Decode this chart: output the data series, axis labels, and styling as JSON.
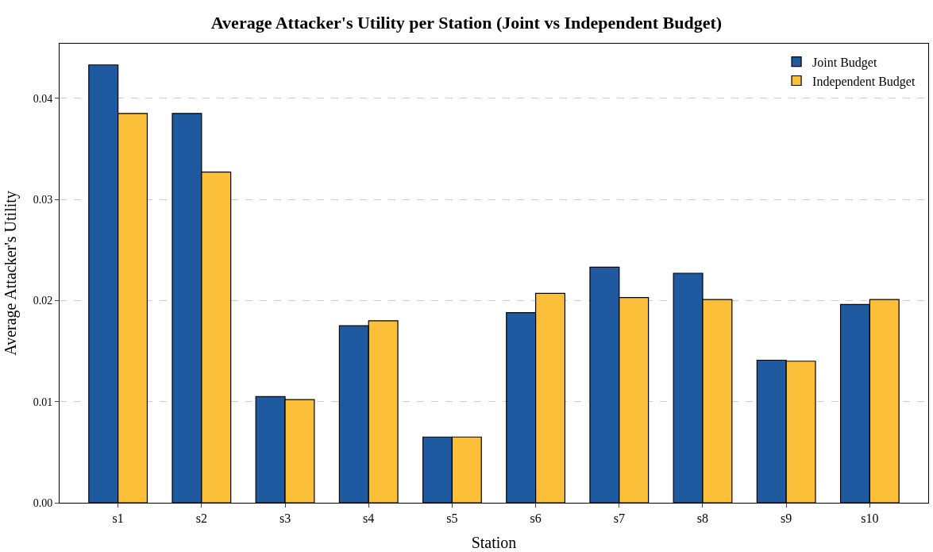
{
  "chart_data": {
    "type": "bar",
    "title": "Average Attacker's Utility per Station (Joint vs Independent Budget)",
    "xlabel": "Station",
    "ylabel": "Average Attacker's Utility",
    "categories": [
      "s1",
      "s2",
      "s3",
      "s4",
      "s5",
      "s6",
      "s7",
      "s8",
      "s9",
      "s10"
    ],
    "series": [
      {
        "name": "Joint Budget",
        "color": "#1f5aa0",
        "values": [
          0.0433,
          0.0385,
          0.0105,
          0.0175,
          0.0065,
          0.0188,
          0.0233,
          0.0227,
          0.0141,
          0.0196
        ]
      },
      {
        "name": "Independent Budget",
        "color": "#fbbf3a",
        "values": [
          0.0385,
          0.0327,
          0.0102,
          0.018,
          0.0065,
          0.0207,
          0.0203,
          0.0201,
          0.014,
          0.0201
        ]
      }
    ],
    "ylim": [
      0,
      0.0454
    ],
    "yticks": [
      {
        "value": 0,
        "label": "0.00"
      },
      {
        "value": 0.01,
        "label": "0.01"
      },
      {
        "value": 0.02,
        "label": "0.02"
      },
      {
        "value": 0.03,
        "label": "0.03"
      },
      {
        "value": 0.04,
        "label": "0.04"
      }
    ],
    "grid": "y",
    "legend": "top right"
  }
}
